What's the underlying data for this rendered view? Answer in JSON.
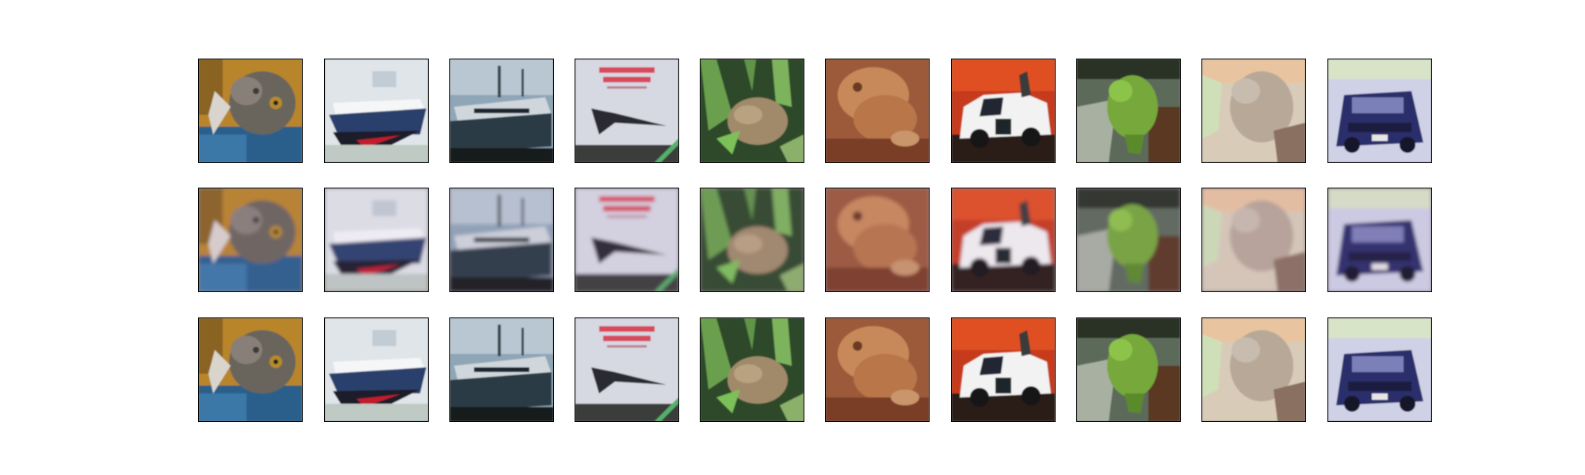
{
  "figure": {
    "rows": [
      {
        "tiles": [
          {
            "subject": "cat",
            "variant": "original"
          },
          {
            "subject": "ship-white",
            "variant": "original"
          },
          {
            "subject": "ship-dark",
            "variant": "original"
          },
          {
            "subject": "airplane-poster",
            "variant": "original"
          },
          {
            "subject": "frog-grass",
            "variant": "original"
          },
          {
            "subject": "frog-brown",
            "variant": "original"
          },
          {
            "subject": "car-white",
            "variant": "original"
          },
          {
            "subject": "frog-green",
            "variant": "original"
          },
          {
            "subject": "cat-light",
            "variant": "original"
          },
          {
            "subject": "car-blue",
            "variant": "original"
          }
        ]
      },
      {
        "tiles": [
          {
            "subject": "cat",
            "variant": "reconstruction"
          },
          {
            "subject": "ship-white",
            "variant": "reconstruction"
          },
          {
            "subject": "ship-dark",
            "variant": "reconstruction"
          },
          {
            "subject": "airplane-poster",
            "variant": "reconstruction"
          },
          {
            "subject": "frog-grass",
            "variant": "reconstruction"
          },
          {
            "subject": "frog-brown",
            "variant": "reconstruction"
          },
          {
            "subject": "car-white",
            "variant": "reconstruction"
          },
          {
            "subject": "frog-green",
            "variant": "reconstruction"
          },
          {
            "subject": "cat-light",
            "variant": "reconstruction"
          },
          {
            "subject": "car-blue",
            "variant": "reconstruction"
          }
        ]
      },
      {
        "tiles": [
          {
            "subject": "cat",
            "variant": "original"
          },
          {
            "subject": "ship-white",
            "variant": "original"
          },
          {
            "subject": "ship-dark",
            "variant": "original"
          },
          {
            "subject": "airplane-poster",
            "variant": "original"
          },
          {
            "subject": "frog-grass",
            "variant": "original"
          },
          {
            "subject": "frog-brown",
            "variant": "original"
          },
          {
            "subject": "car-white",
            "variant": "original"
          },
          {
            "subject": "frog-green",
            "variant": "original"
          },
          {
            "subject": "cat-light",
            "variant": "original"
          },
          {
            "subject": "car-blue",
            "variant": "original"
          }
        ]
      }
    ]
  }
}
